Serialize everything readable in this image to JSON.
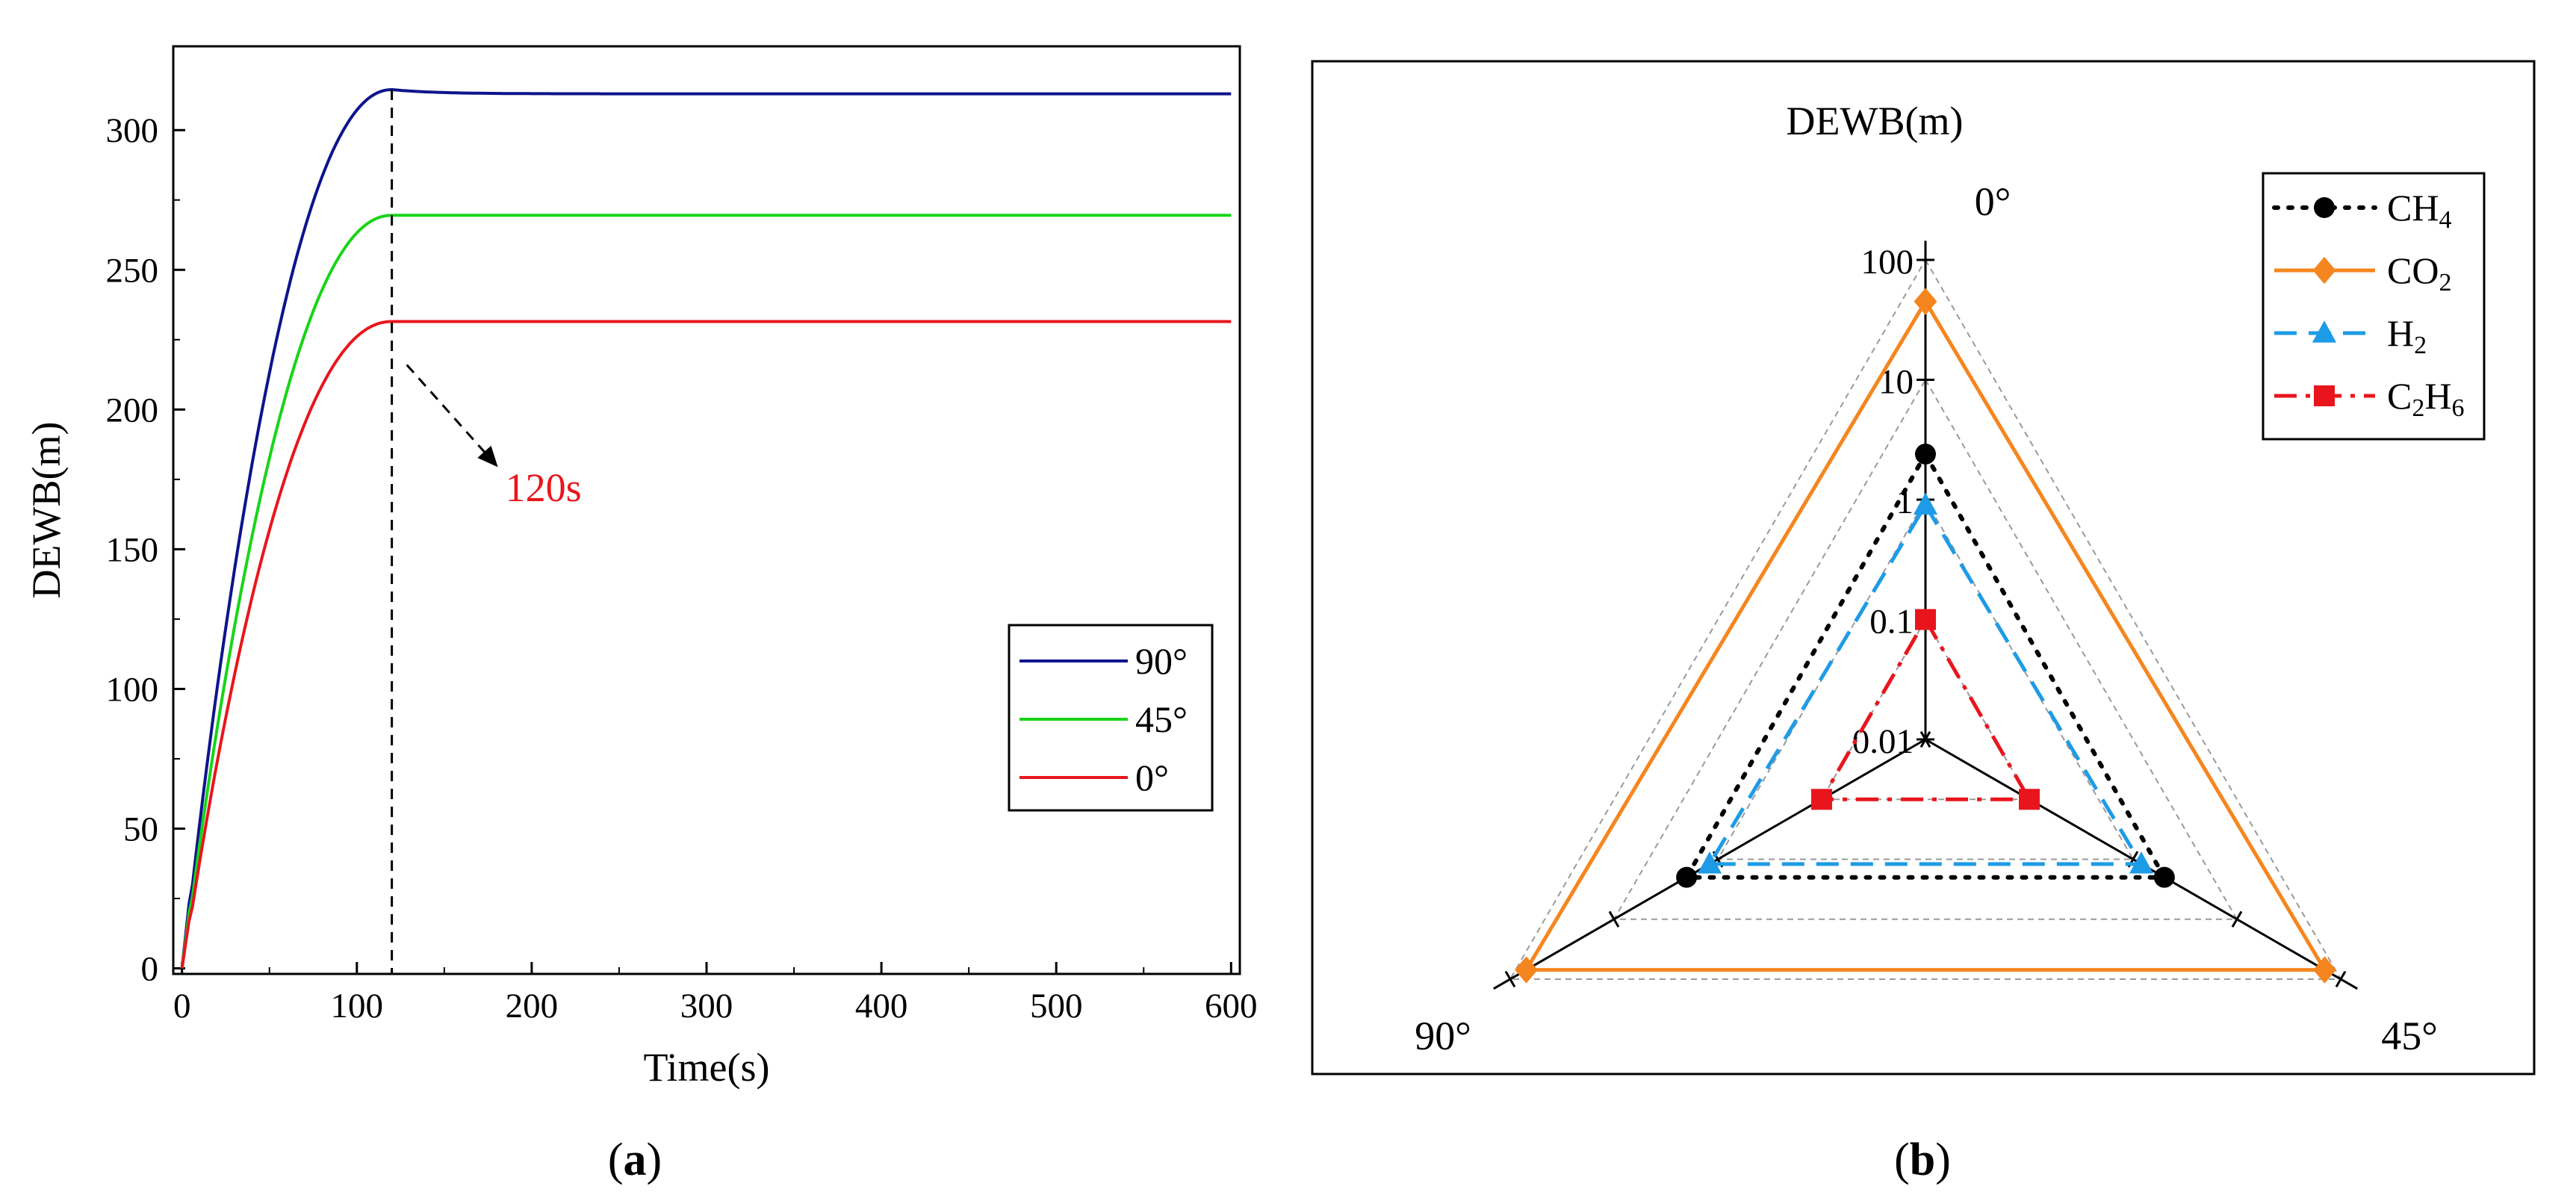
{
  "figure": {
    "panel_a_label": "a",
    "panel_b_label": "b"
  },
  "chart_data": [
    {
      "type": "line",
      "title": "",
      "xlabel": "Time(s)",
      "ylabel": "DEWB(m)",
      "xlim": [
        -5,
        605
      ],
      "ylim": [
        -2,
        330
      ],
      "xticks": [
        0,
        100,
        200,
        300,
        400,
        500,
        600
      ],
      "yticks": [
        0,
        50,
        100,
        150,
        200,
        250,
        300
      ],
      "legend_position": "right-middle",
      "annotation": {
        "text": "120s",
        "x": 120,
        "color": "#e8161c"
      },
      "series": [
        {
          "name": "90°",
          "color": "#0d148c",
          "plateau": 313,
          "peak": 314.5
        },
        {
          "name": "45°",
          "color": "#19d419",
          "plateau": 269.5,
          "peak": 269.5
        },
        {
          "name": "0°",
          "color": "#e8161c",
          "plateau": 231.5,
          "peak": 231.5
        }
      ]
    },
    {
      "type": "radar",
      "title": "DEWB(m)",
      "scale": "log",
      "axes": [
        "0°",
        "45°",
        "90°"
      ],
      "ticks": [
        "0.01",
        "0.1",
        "1",
        "10",
        "100"
      ],
      "tick_values": [
        0.01,
        0.1,
        1,
        10,
        100
      ],
      "range": [
        0.01,
        100
      ],
      "legend_position": "top-right",
      "series": [
        {
          "name": "CH",
          "sub": "4",
          "color": "#000000",
          "marker": "circle",
          "dash": "dot",
          "values": [
            2.4,
            2.0,
            2.0
          ]
        },
        {
          "name": "CO",
          "sub": "2",
          "color": "#f5861f",
          "marker": "diamond",
          "dash": "solid",
          "values": [
            45,
            70,
            70
          ]
        },
        {
          "name": "H",
          "sub": "2",
          "color": "#1e9be6",
          "marker": "triangle",
          "dash": "dash",
          "values": [
            0.9,
            1.2,
            1.2
          ]
        },
        {
          "name": "C",
          "sub": "2",
          "sub2": "6",
          "mid": "H",
          "color": "#e8161c",
          "marker": "square",
          "dash": "dashdot",
          "values": [
            0.1,
            0.1,
            0.1
          ]
        }
      ]
    }
  ]
}
